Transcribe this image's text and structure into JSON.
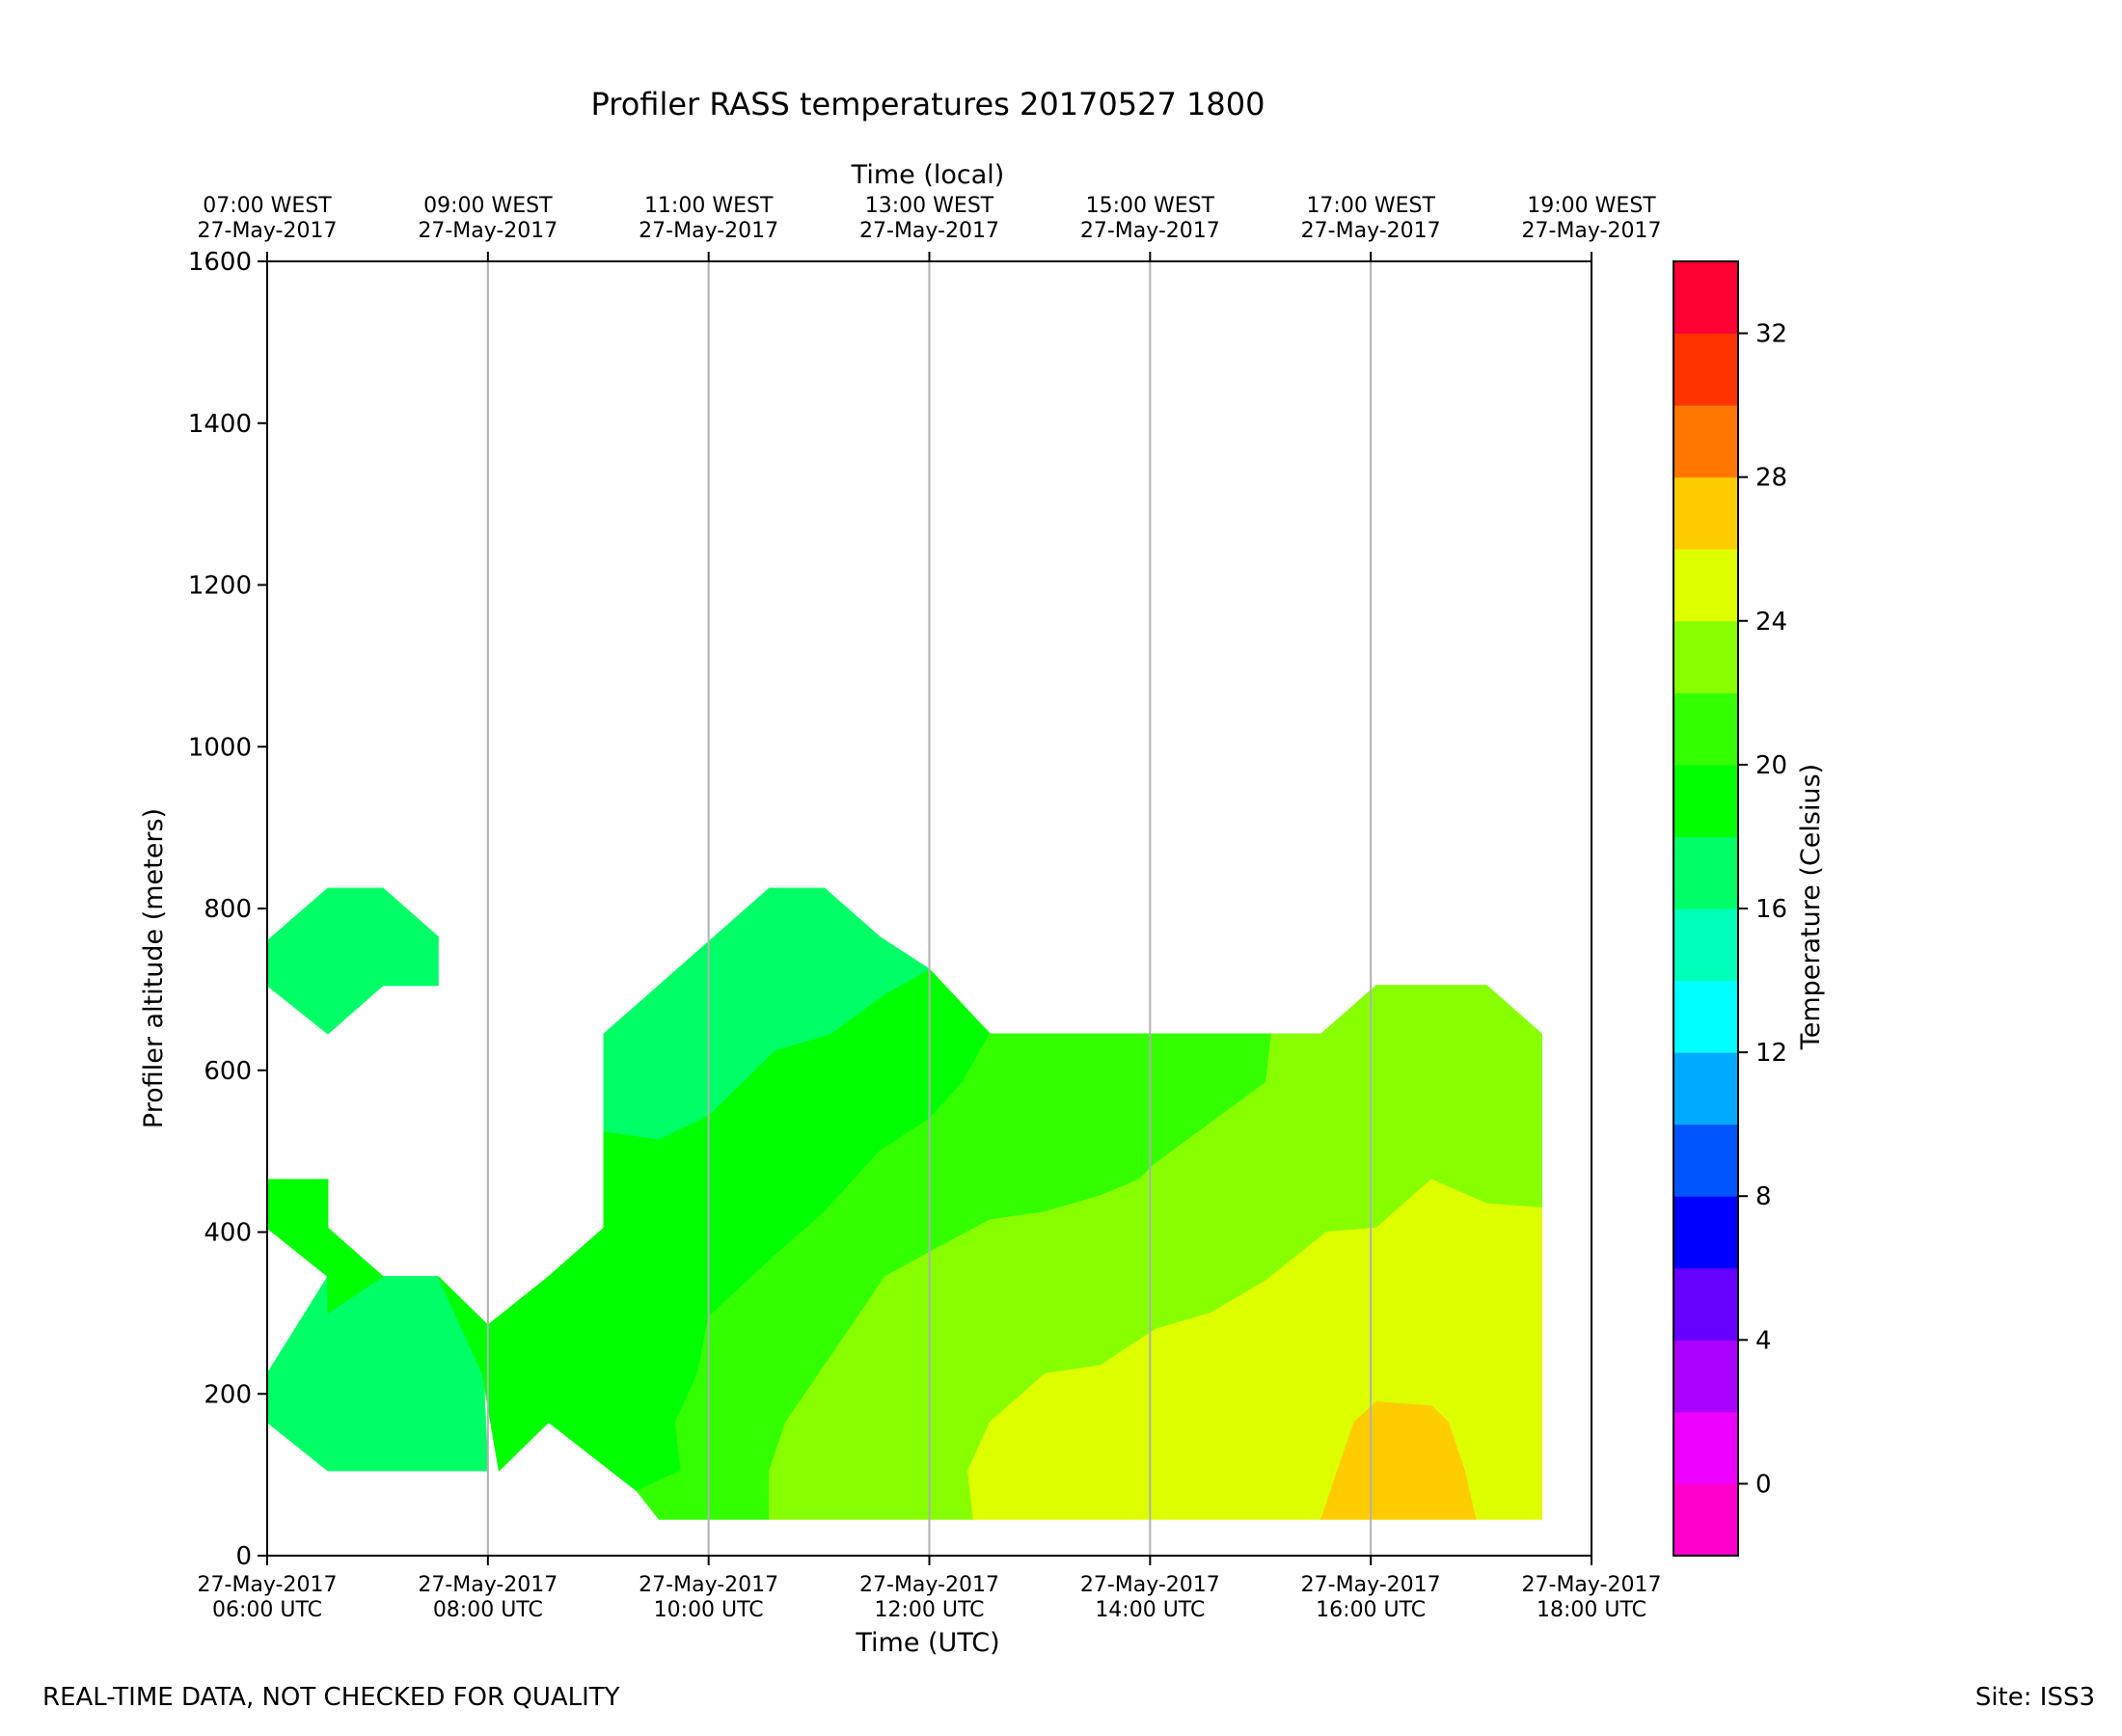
{
  "footer": {
    "notice": "REAL-TIME DATA, NOT CHECKED FOR QUALITY",
    "site": "Site: ISS3"
  },
  "chart_data": {
    "type": "heatmap",
    "title": "Profiler RASS temperatures 20170527 1800",
    "xlabel": "Time (UTC)",
    "x2label": "Time (local)",
    "ylabel": "Profiler altitude (meters)",
    "colorbar_label": "Temperature (Celsius)",
    "xlim_hours_utc": [
      6,
      18
    ],
    "ylim": [
      0,
      1600
    ],
    "yticks": [
      0,
      200,
      400,
      600,
      800,
      1000,
      1200,
      1400,
      1600
    ],
    "xticks": [
      {
        "hour": 6,
        "utc": [
          "27-May-2017",
          "06:00 UTC"
        ],
        "local": [
          "07:00 WEST",
          "27-May-2017"
        ]
      },
      {
        "hour": 8,
        "utc": [
          "27-May-2017",
          "08:00 UTC"
        ],
        "local": [
          "09:00 WEST",
          "27-May-2017"
        ]
      },
      {
        "hour": 10,
        "utc": [
          "27-May-2017",
          "10:00 UTC"
        ],
        "local": [
          "11:00 WEST",
          "27-May-2017"
        ]
      },
      {
        "hour": 12,
        "utc": [
          "27-May-2017",
          "12:00 UTC"
        ],
        "local": [
          "13:00 WEST",
          "27-May-2017"
        ]
      },
      {
        "hour": 14,
        "utc": [
          "27-May-2017",
          "14:00 UTC"
        ],
        "local": [
          "15:00 WEST",
          "27-May-2017"
        ]
      },
      {
        "hour": 16,
        "utc": [
          "27-May-2017",
          "16:00 UTC"
        ],
        "local": [
          "17:00 WEST",
          "27-May-2017"
        ]
      },
      {
        "hour": 18,
        "utc": [
          "27-May-2017",
          "18:00 UTC"
        ],
        "local": [
          "19:00 WEST",
          "27-May-2017"
        ]
      }
    ],
    "vertical_grid": true,
    "colorbar": {
      "min": -2,
      "max": 34,
      "step": 2,
      "ticks": [
        0,
        4,
        8,
        12,
        16,
        20,
        24,
        28,
        32
      ],
      "colors": [
        "#ff00cc",
        "#ee00ff",
        "#aa00ff",
        "#6600ff",
        "#0000ff",
        "#0055ff",
        "#00aaff",
        "#00ffff",
        "#00ffbb",
        "#00ff66",
        "#00ff00",
        "#33ff00",
        "#88ff00",
        "#ddff00",
        "#ffcc00",
        "#ff7700",
        "#ff3300",
        "#ff0033"
      ]
    },
    "regions": [
      {
        "level": [
          16,
          18
        ],
        "points": [
          [
            6,
            760
          ],
          [
            6.55,
            825
          ],
          [
            7.05,
            825
          ],
          [
            7.55,
            765
          ],
          [
            7.55,
            705
          ],
          [
            7.05,
            705
          ],
          [
            6.55,
            645
          ],
          [
            6,
            705
          ]
        ]
      },
      {
        "level": [
          16,
          18
        ],
        "points": [
          [
            6,
            225
          ],
          [
            6.55,
            345
          ],
          [
            7.55,
            345
          ],
          [
            7.95,
            255
          ],
          [
            8,
            105
          ],
          [
            6.55,
            105
          ],
          [
            6,
            165
          ]
        ]
      },
      {
        "level": [
          18,
          20
        ],
        "points": [
          [
            6,
            465
          ],
          [
            6.55,
            465
          ],
          [
            6.55,
            405
          ],
          [
            7.05,
            345
          ],
          [
            6.55,
            300
          ],
          [
            6.55,
            345
          ],
          [
            6,
            405
          ]
        ]
      },
      {
        "level": [
          18,
          20
        ],
        "points": [
          [
            7.55,
            345
          ],
          [
            8,
            285
          ],
          [
            8.55,
            345
          ],
          [
            9.05,
            405
          ],
          [
            9.05,
            525
          ],
          [
            9.55,
            515
          ],
          [
            10,
            545
          ],
          [
            10.55,
            625
          ],
          [
            11.05,
            645
          ],
          [
            11.55,
            705
          ],
          [
            12,
            725
          ],
          [
            12.55,
            645
          ],
          [
            12.3,
            585
          ],
          [
            12,
            540
          ],
          [
            11.55,
            500
          ],
          [
            11.05,
            425
          ],
          [
            10.55,
            365
          ],
          [
            10,
            295
          ],
          [
            9.9,
            225
          ],
          [
            9.7,
            165
          ],
          [
            9.75,
            105
          ],
          [
            9.35,
            80
          ],
          [
            8.55,
            165
          ],
          [
            8.1,
            105
          ],
          [
            7.95,
            225
          ]
        ]
      },
      {
        "level": [
          16,
          18
        ],
        "points": [
          [
            9.05,
            645
          ],
          [
            9.55,
            705
          ],
          [
            10.05,
            765
          ],
          [
            10.55,
            825
          ],
          [
            11.05,
            825
          ],
          [
            11.55,
            765
          ],
          [
            12,
            725
          ],
          [
            11.6,
            695
          ],
          [
            11.1,
            645
          ],
          [
            10.6,
            625
          ],
          [
            10,
            545
          ],
          [
            9.55,
            515
          ],
          [
            9.05,
            525
          ]
        ]
      },
      {
        "level": [
          20,
          22
        ],
        "points": [
          [
            9.35,
            80
          ],
          [
            9.55,
            45
          ],
          [
            10.55,
            45
          ],
          [
            10.55,
            105
          ],
          [
            10.7,
            165
          ],
          [
            11,
            225
          ],
          [
            11.3,
            285
          ],
          [
            11.6,
            345
          ],
          [
            12,
            375
          ],
          [
            12.55,
            415
          ],
          [
            13.05,
            425
          ],
          [
            13.55,
            445
          ],
          [
            13.9,
            465
          ],
          [
            14.05,
            485
          ],
          [
            14.55,
            535
          ],
          [
            15.05,
            585
          ],
          [
            15.1,
            645
          ],
          [
            12.55,
            645
          ],
          [
            12.3,
            585
          ],
          [
            12,
            540
          ],
          [
            11.55,
            500
          ],
          [
            11.05,
            425
          ],
          [
            10.55,
            365
          ],
          [
            10,
            295
          ],
          [
            9.9,
            225
          ],
          [
            9.7,
            165
          ],
          [
            9.75,
            105
          ]
        ]
      },
      {
        "level": [
          22,
          24
        ],
        "points": [
          [
            10.55,
            45
          ],
          [
            12.4,
            45
          ],
          [
            12.35,
            105
          ],
          [
            12.55,
            165
          ],
          [
            13.05,
            225
          ],
          [
            13.55,
            235
          ],
          [
            14.05,
            280
          ],
          [
            14.55,
            300
          ],
          [
            15.05,
            340
          ],
          [
            15.6,
            400
          ],
          [
            16.05,
            405
          ],
          [
            16.55,
            465
          ],
          [
            17.05,
            435
          ],
          [
            17.55,
            430
          ],
          [
            17.55,
            645
          ],
          [
            17.05,
            705
          ],
          [
            16.55,
            705
          ],
          [
            16.05,
            705
          ],
          [
            15.55,
            645
          ],
          [
            15.1,
            645
          ],
          [
            15.05,
            585
          ],
          [
            14.55,
            535
          ],
          [
            14.05,
            485
          ],
          [
            13.9,
            465
          ],
          [
            13.55,
            445
          ],
          [
            13.05,
            425
          ],
          [
            12.55,
            415
          ],
          [
            12,
            375
          ],
          [
            11.6,
            345
          ],
          [
            11.3,
            285
          ],
          [
            11,
            225
          ],
          [
            10.7,
            165
          ],
          [
            10.55,
            105
          ]
        ]
      },
      {
        "level": [
          24,
          26
        ],
        "points": [
          [
            12.4,
            45
          ],
          [
            15.55,
            45
          ],
          [
            15.7,
            105
          ],
          [
            15.85,
            165
          ],
          [
            16.05,
            190
          ],
          [
            16.55,
            185
          ],
          [
            16.7,
            165
          ],
          [
            16.85,
            105
          ],
          [
            16.95,
            45
          ],
          [
            17.55,
            45
          ],
          [
            17.55,
            430
          ],
          [
            17.05,
            435
          ],
          [
            16.55,
            465
          ],
          [
            16.05,
            405
          ],
          [
            15.6,
            400
          ],
          [
            15.05,
            340
          ],
          [
            14.55,
            300
          ],
          [
            14.05,
            280
          ],
          [
            13.55,
            235
          ],
          [
            13.05,
            225
          ],
          [
            12.55,
            165
          ],
          [
            12.35,
            105
          ]
        ]
      },
      {
        "level": [
          26,
          28
        ],
        "points": [
          [
            15.55,
            45
          ],
          [
            16.95,
            45
          ],
          [
            16.85,
            105
          ],
          [
            16.7,
            165
          ],
          [
            16.55,
            185
          ],
          [
            16.05,
            190
          ],
          [
            15.85,
            165
          ],
          [
            15.7,
            105
          ]
        ]
      }
    ]
  }
}
